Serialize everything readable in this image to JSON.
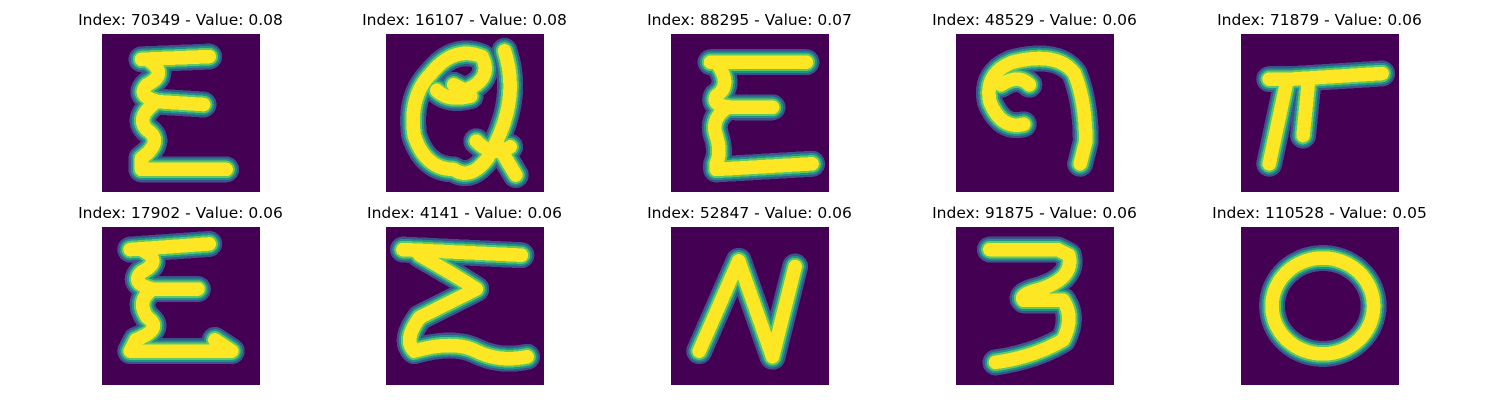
{
  "colors": {
    "background": "#440154",
    "stroke": "#fde725",
    "edge": "#21918c",
    "edge_outer": "#3b528b",
    "edge_inner": "#5ec962"
  },
  "panels": [
    {
      "title": "Index: 70349 - Value: 0.08",
      "glyph": "ξ-like handwritten character (E with wavy spine)"
    },
    {
      "title": "Index: 16107 - Value: 0.08",
      "glyph": "handwritten @-like looped character"
    },
    {
      "title": "Index: 88295 - Value: 0.07",
      "glyph": "handwritten E-like character with curly spine"
    },
    {
      "title": "Index: 48529 - Value: 0.06",
      "glyph": "handwritten hook / G-like character"
    },
    {
      "title": "Index: 71879 - Value: 0.06",
      "glyph": "handwritten pi-like character"
    },
    {
      "title": "Index: 17902 - Value: 0.06",
      "glyph": "ξ-like handwritten character"
    },
    {
      "title": "Index: 4141 - Value: 0.06",
      "glyph": "handwritten sigma / E-like zigzag character"
    },
    {
      "title": "Index: 52847 - Value: 0.06",
      "glyph": "handwritten N"
    },
    {
      "title": "Index: 91875 - Value: 0.06",
      "glyph": "handwritten 3"
    },
    {
      "title": "Index: 110528 - Value: 0.05",
      "glyph": "handwritten O"
    }
  ]
}
